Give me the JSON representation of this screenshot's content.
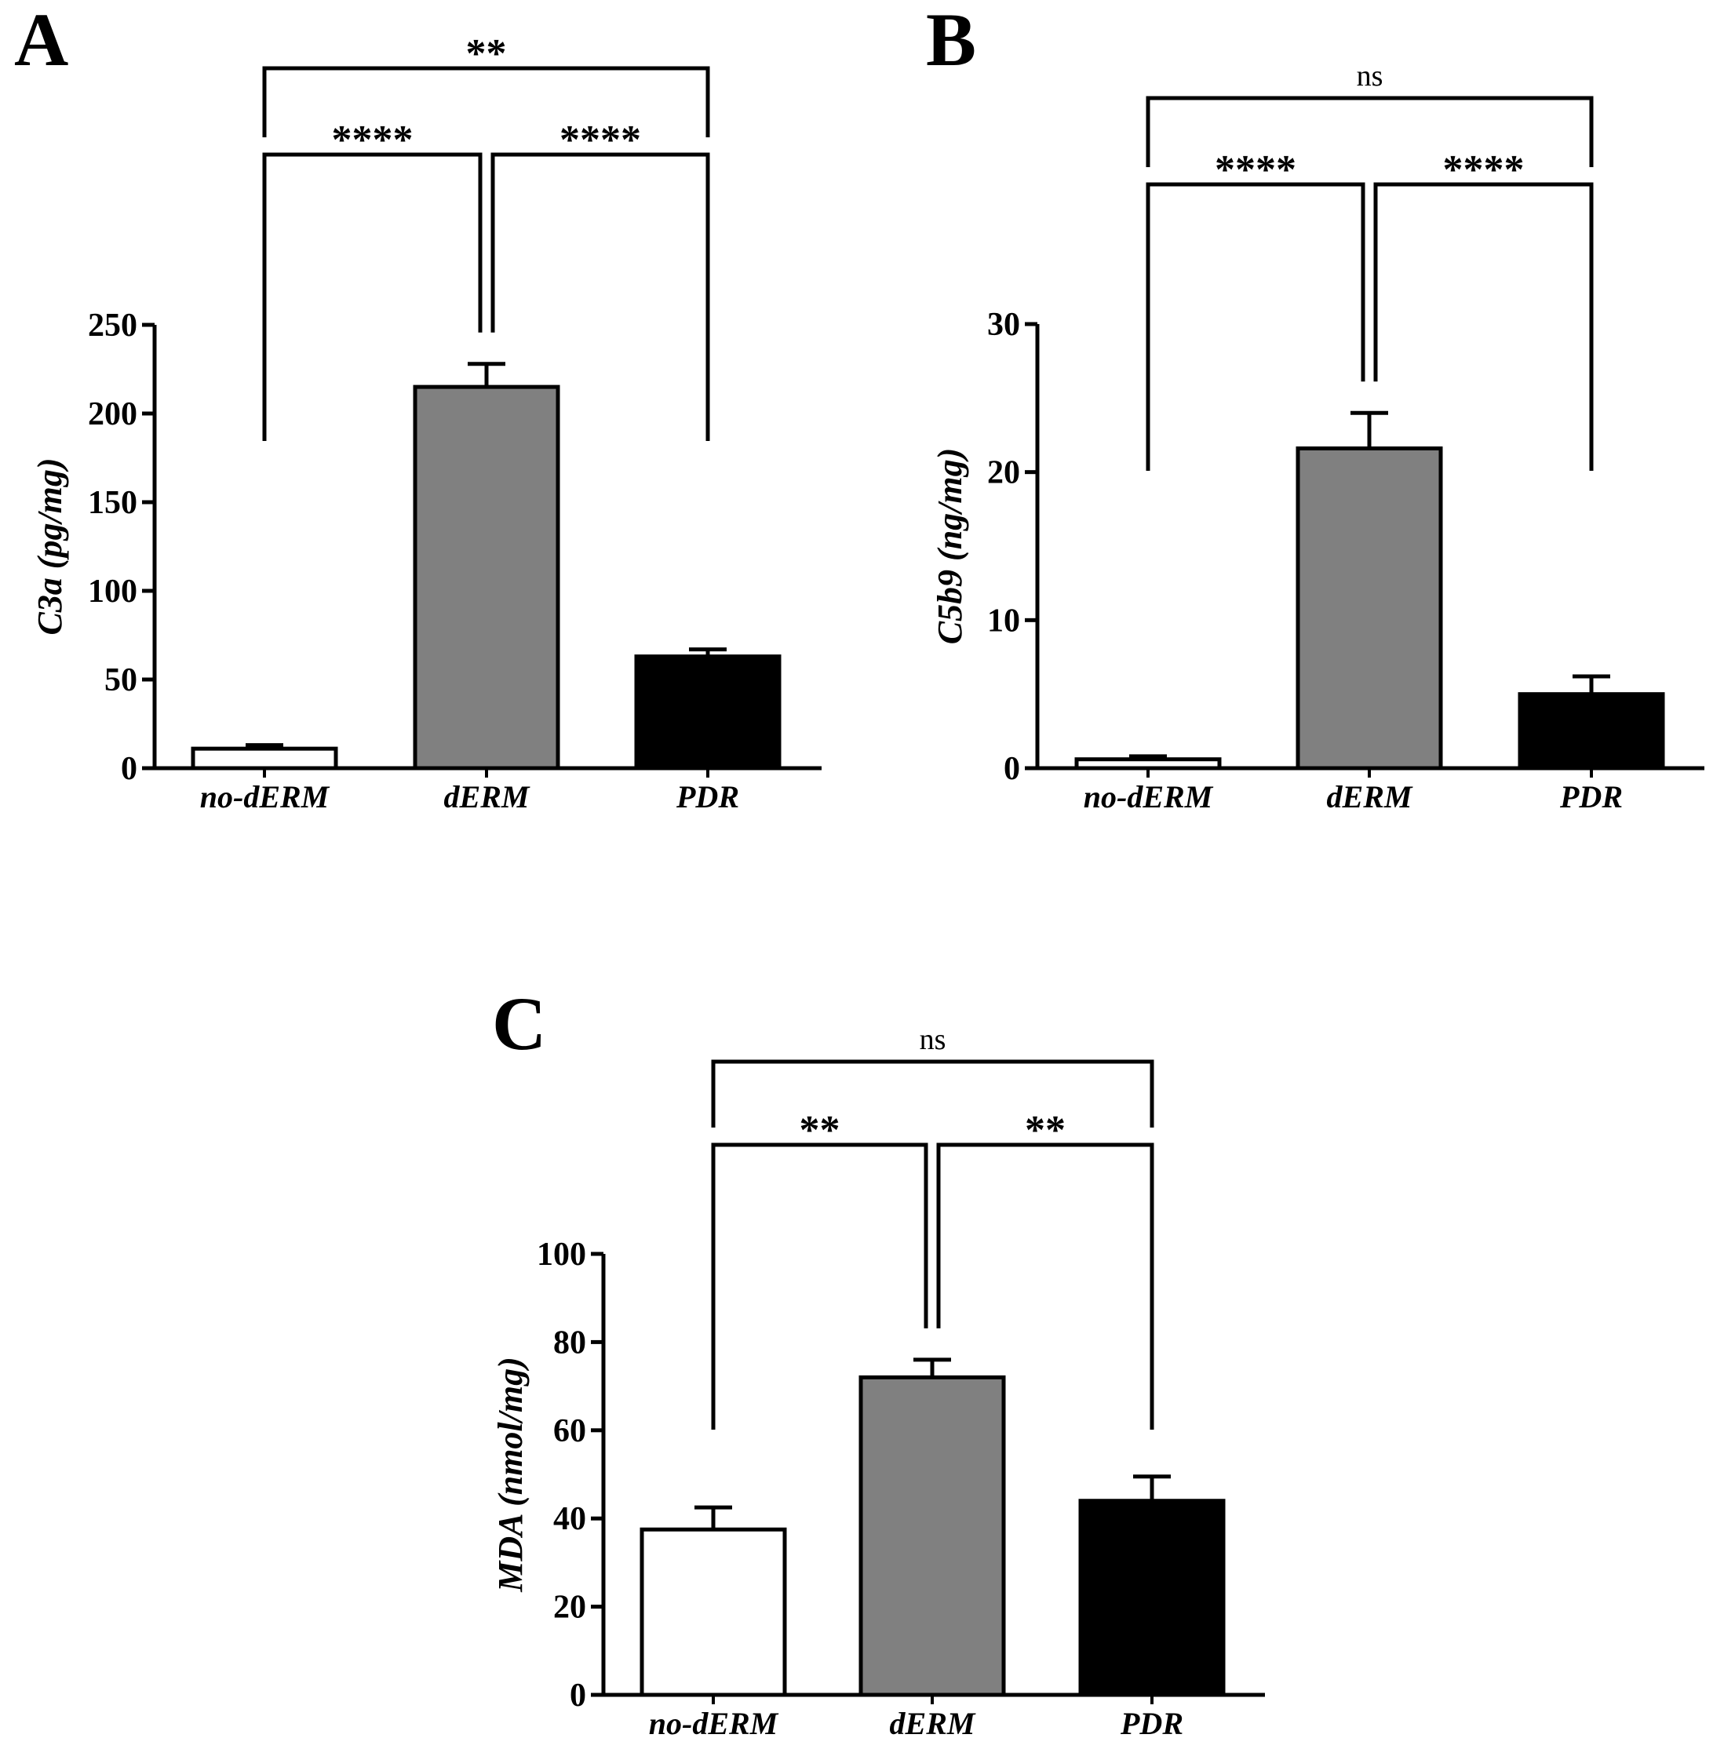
{
  "chart_data": [
    {
      "type": "bar",
      "panel": "A",
      "categories": [
        "no-dERM",
        "dERM",
        "PDR"
      ],
      "values": [
        11,
        215,
        63
      ],
      "errors": [
        2,
        13,
        4
      ],
      "colors": [
        "#ffffff",
        "#808080",
        "#000000"
      ],
      "ylabel": "C3a (pg/mg)",
      "ylim": [
        0,
        250
      ],
      "yticks": [
        "0",
        "50",
        "100",
        "150",
        "200",
        "250"
      ],
      "comparisons": [
        {
          "groups": [
            "no-dERM",
            "dERM"
          ],
          "label": "****"
        },
        {
          "groups": [
            "dERM",
            "PDR"
          ],
          "label": "****"
        },
        {
          "groups": [
            "no-dERM",
            "PDR"
          ],
          "label": "**"
        }
      ]
    },
    {
      "type": "bar",
      "panel": "B",
      "categories": [
        "no-dERM",
        "dERM",
        "PDR"
      ],
      "values": [
        0.6,
        21.6,
        5.0
      ],
      "errors": [
        0.2,
        2.4,
        1.2
      ],
      "colors": [
        "#ffffff",
        "#808080",
        "#000000"
      ],
      "ylabel": "C5b9 (ng/mg)",
      "ylim": [
        0,
        30
      ],
      "yticks": [
        "0",
        "10",
        "20",
        "30"
      ],
      "comparisons": [
        {
          "groups": [
            "no-dERM",
            "dERM"
          ],
          "label": "****"
        },
        {
          "groups": [
            "dERM",
            "PDR"
          ],
          "label": "****"
        },
        {
          "groups": [
            "no-dERM",
            "PDR"
          ],
          "label": "ns"
        }
      ]
    },
    {
      "type": "bar",
      "panel": "C",
      "categories": [
        "no-dERM",
        "dERM",
        "PDR"
      ],
      "values": [
        37.5,
        72,
        44
      ],
      "errors": [
        5,
        4,
        5.5
      ],
      "colors": [
        "#ffffff",
        "#808080",
        "#000000"
      ],
      "ylabel": "MDA (nmol/mg)",
      "ylim": [
        0,
        100
      ],
      "yticks": [
        "0",
        "20",
        "40",
        "60",
        "80",
        "100"
      ],
      "comparisons": [
        {
          "groups": [
            "no-dERM",
            "dERM"
          ],
          "label": "**"
        },
        {
          "groups": [
            "dERM",
            "PDR"
          ],
          "label": "**"
        },
        {
          "groups": [
            "no-dERM",
            "PDR"
          ],
          "label": "ns"
        }
      ]
    }
  ]
}
